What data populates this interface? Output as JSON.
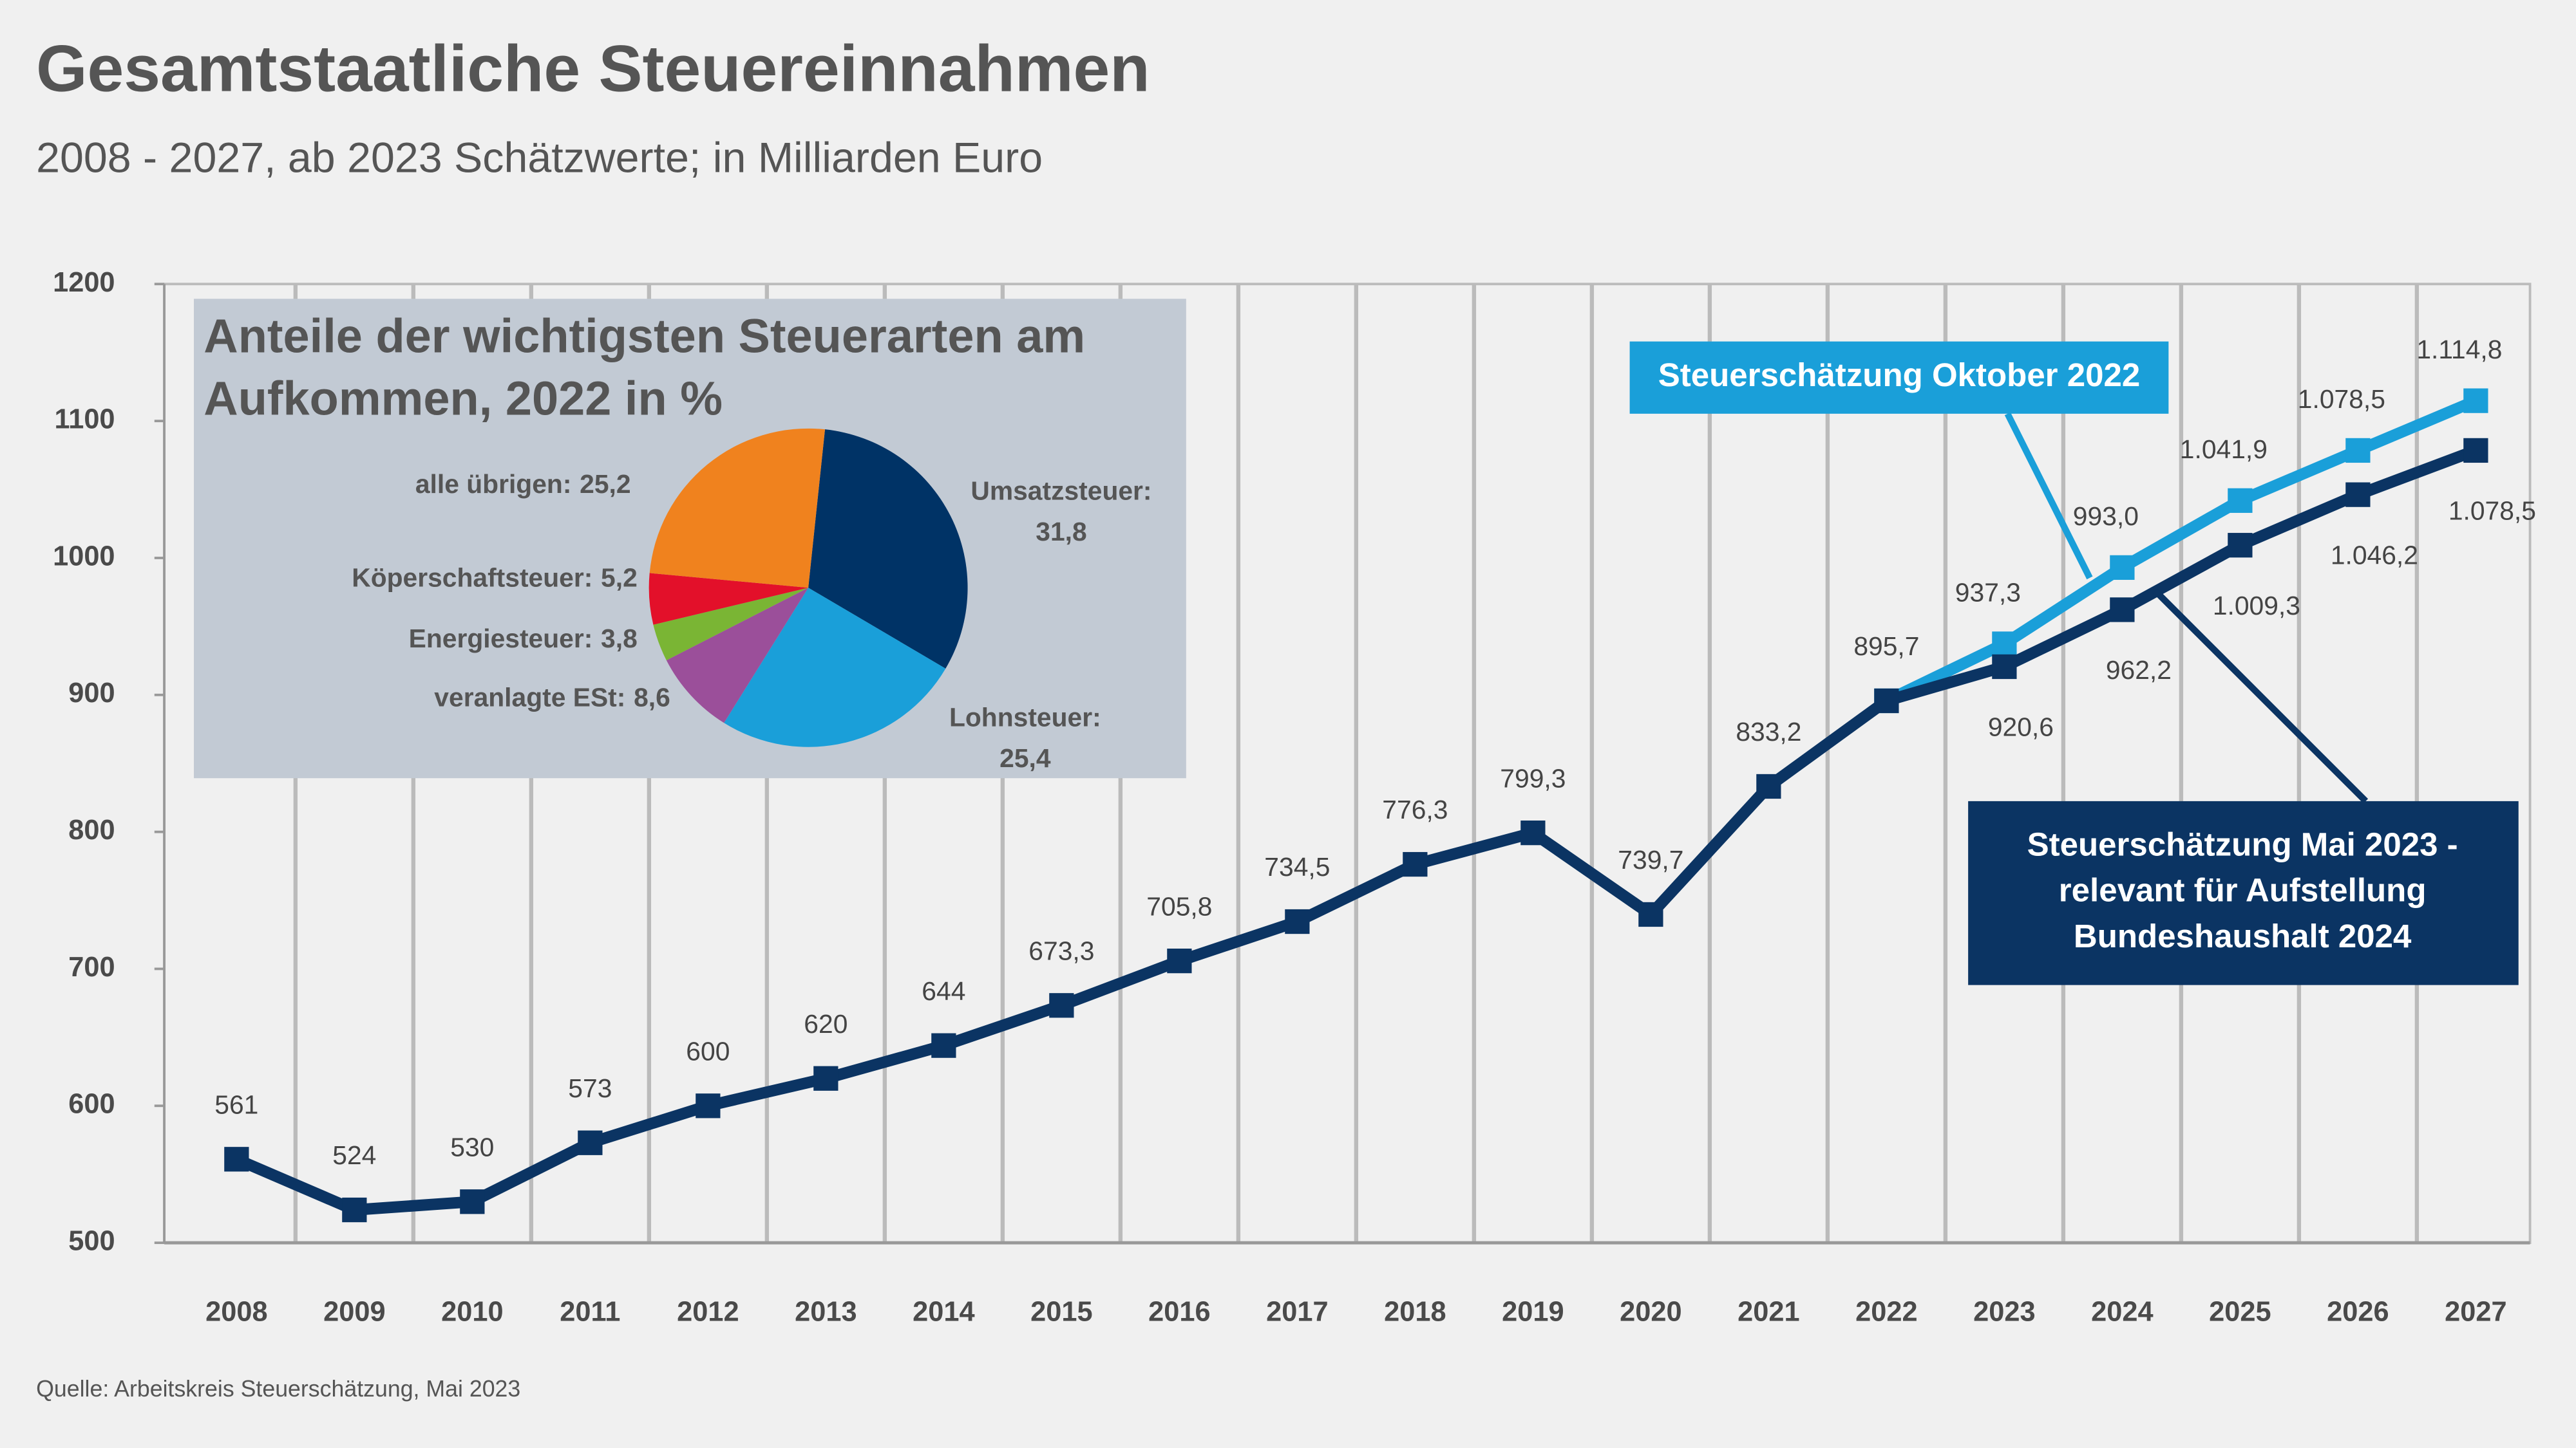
{
  "title": "Gesamtstaatliche Steuereinnahmen",
  "subtitle": "2008 - 2027, ab 2023 Schätzwerte; in Milliarden Euro",
  "source": "Quelle: Arbeitskreis Steuerschätzung, Mai 2023",
  "chart_data": [
    {
      "type": "line",
      "categories": [
        "2008",
        "2009",
        "2010",
        "2011",
        "2012",
        "2013",
        "2014",
        "2015",
        "2016",
        "2017",
        "2018",
        "2019",
        "2020",
        "2021",
        "2022",
        "2023",
        "2024",
        "2025",
        "2026",
        "2027"
      ],
      "ylim": [
        500,
        1200
      ],
      "yticks": [
        500,
        600,
        700,
        800,
        900,
        1000,
        1100,
        1200
      ],
      "grid": "vertical",
      "series": [
        {
          "name": "Steuerschätzung Mai 2023 -\nrelevant für Aufstellung\nBundeshaushalt 2024",
          "color": "#0b3463",
          "values": [
            561,
            524,
            530,
            573,
            600,
            620,
            644,
            673.3,
            705.8,
            734.5,
            776.3,
            799.3,
            739.7,
            833.2,
            895.7,
            920.6,
            962.2,
            1009.3,
            1046.2,
            1078.5
          ],
          "value_labels": [
            "561",
            "524",
            "530",
            "573",
            "600",
            "620",
            "644",
            "673,3",
            "705,8",
            "734,5",
            "776,3",
            "799,3",
            "739,7",
            "833,2",
            "895,7",
            "920,6",
            "962,2",
            "1.009,3",
            "1.046,2",
            "1.078,5"
          ]
        },
        {
          "name": "Steuerschätzung Oktober 2022",
          "color": "#1a9fd9",
          "values": [
            null,
            null,
            null,
            null,
            null,
            null,
            null,
            null,
            null,
            null,
            null,
            null,
            null,
            null,
            895.7,
            937.3,
            993.0,
            1041.9,
            1078.5,
            1114.8
          ],
          "value_labels": [
            null,
            null,
            null,
            null,
            null,
            null,
            null,
            null,
            null,
            null,
            null,
            null,
            null,
            null,
            null,
            "937,3",
            "993,0",
            "1.041,9",
            "1.078,5",
            "1.114,8"
          ]
        }
      ]
    },
    {
      "type": "pie",
      "title": [
        "Anteile der wichtigsten Steuerarten am",
        "Aufkommen, 2022 in %"
      ],
      "categories": [
        "Umsatzsteuer:",
        "Lohnsteuer:",
        "veranlagte ESt:",
        "Energiesteuer:",
        "Köperschaftsteuer:",
        "alle übrigen:"
      ],
      "values": [
        31.8,
        25.4,
        8.6,
        3.8,
        5.2,
        25.2
      ],
      "value_labels": [
        "31,8",
        "25,4",
        "8,6",
        "3,8",
        "5,2",
        "25,2"
      ],
      "colors": [
        "#003366",
        "#1a9fd9",
        "#9b4f9a",
        "#7ab534",
        "#e3102a",
        "#f0821e"
      ]
    }
  ]
}
